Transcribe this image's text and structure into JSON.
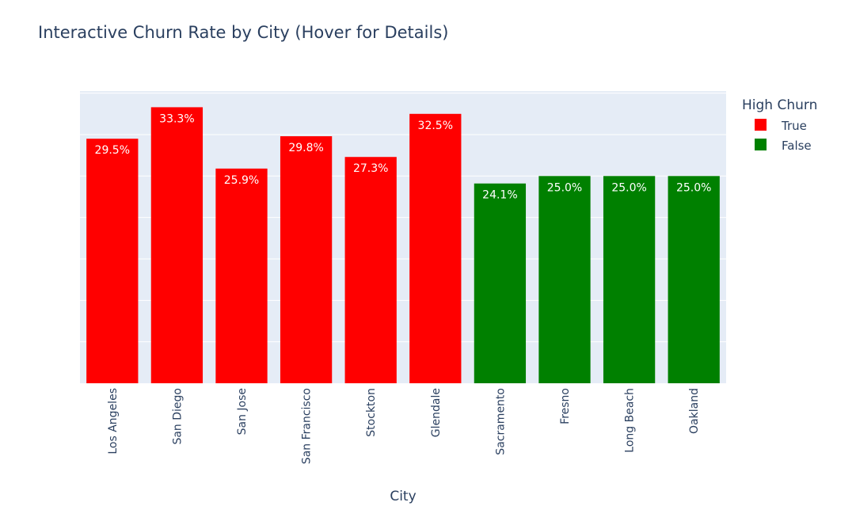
{
  "chart_data": {
    "type": "bar",
    "title": "Interactive Churn Rate by City (Hover for Details)",
    "xlabel": "City",
    "ylabel": "",
    "ylim": [
      0,
      35
    ],
    "grid": true,
    "y_tick_labels_visible": false,
    "legend": {
      "title": "High Churn",
      "placement": "top-right",
      "entries": [
        {
          "label": "True",
          "color": "#ff0000"
        },
        {
          "label": "False",
          "color": "#008000"
        }
      ]
    },
    "categories": [
      "Los Angeles",
      "San Diego",
      "San Jose",
      "San Francisco",
      "Stockton",
      "Glendale",
      "Sacramento",
      "Fresno",
      "Long Beach",
      "Oakland"
    ],
    "values": [
      29.5,
      33.3,
      25.9,
      29.8,
      27.3,
      32.5,
      24.1,
      25.0,
      25.0,
      25.0
    ],
    "value_labels": [
      "29.5%",
      "33.3%",
      "25.9%",
      "29.8%",
      "27.3%",
      "32.5%",
      "24.1%",
      "25.0%",
      "25.0%",
      "25.0%"
    ],
    "high_churn": [
      "True",
      "True",
      "True",
      "True",
      "True",
      "True",
      "False",
      "False",
      "False",
      "False"
    ]
  },
  "colors": {
    "true": "#ff0000",
    "false": "#008000",
    "plot_bg": "#e5ecf6",
    "grid": "#ffffff",
    "text": "#2a3f5f"
  }
}
